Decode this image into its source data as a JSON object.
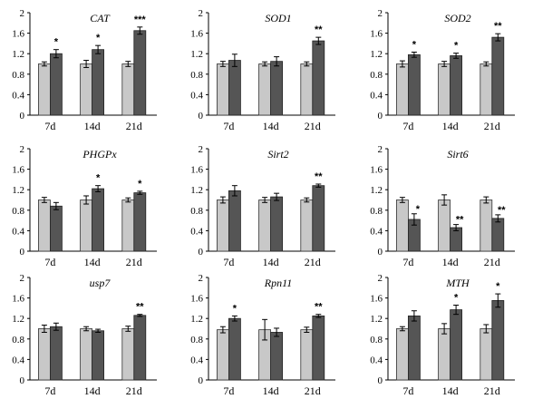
{
  "colors": {
    "control": "#c8c8c8",
    "treated": "#555555"
  },
  "chart_data": [
    {
      "type": "bar",
      "title": "CAT",
      "categories": [
        "7d",
        "14d",
        "21d"
      ],
      "ylim": [
        0,
        2
      ],
      "yticks": [
        "0",
        "0.4",
        "0.8",
        "1.2",
        "1.6",
        "2"
      ],
      "series": [
        {
          "values": [
            1.0,
            1.0,
            1.0
          ],
          "errors": [
            0.04,
            0.07,
            0.05
          ]
        },
        {
          "values": [
            1.2,
            1.28,
            1.65
          ],
          "errors": [
            0.08,
            0.08,
            0.07
          ]
        }
      ],
      "significance": [
        "*",
        "*",
        "***"
      ]
    },
    {
      "type": "bar",
      "title": "SOD1",
      "categories": [
        "7d",
        "14d",
        "21d"
      ],
      "ylim": [
        0,
        2
      ],
      "yticks": [
        "0",
        "0.4",
        "0.8",
        "1.2",
        "1.6",
        "2"
      ],
      "series": [
        {
          "values": [
            1.0,
            1.0,
            1.0
          ],
          "errors": [
            0.05,
            0.04,
            0.04
          ]
        },
        {
          "values": [
            1.07,
            1.05,
            1.45
          ],
          "errors": [
            0.12,
            0.09,
            0.07
          ]
        }
      ],
      "significance": [
        "",
        "",
        "**"
      ]
    },
    {
      "type": "bar",
      "title": "SOD2",
      "categories": [
        "7d",
        "14d",
        "21d"
      ],
      "ylim": [
        0,
        2
      ],
      "yticks": [
        "0",
        "0.4",
        "0.8",
        "1.2",
        "1.6",
        "2"
      ],
      "series": [
        {
          "values": [
            1.0,
            1.0,
            1.0
          ],
          "errors": [
            0.06,
            0.05,
            0.04
          ]
        },
        {
          "values": [
            1.18,
            1.16,
            1.52
          ],
          "errors": [
            0.05,
            0.05,
            0.07
          ]
        }
      ],
      "significance": [
        "*",
        "*",
        "**"
      ]
    },
    {
      "type": "bar",
      "title": "PHGPx",
      "categories": [
        "7d",
        "14d",
        "21d"
      ],
      "ylim": [
        0,
        2
      ],
      "yticks": [
        "0",
        "0.4",
        "0.8",
        "1.2",
        "1.6",
        "2"
      ],
      "series": [
        {
          "values": [
            1.0,
            1.0,
            1.0
          ],
          "errors": [
            0.05,
            0.08,
            0.04
          ]
        },
        {
          "values": [
            0.88,
            1.22,
            1.14
          ],
          "errors": [
            0.07,
            0.06,
            0.03
          ]
        }
      ],
      "significance": [
        "",
        "*",
        "*"
      ]
    },
    {
      "type": "bar",
      "title": "Sirt2",
      "categories": [
        "7d",
        "14d",
        "21d"
      ],
      "ylim": [
        0,
        2
      ],
      "yticks": [
        "0",
        "0.4",
        "0.8",
        "1.2",
        "1.6",
        "2"
      ],
      "series": [
        {
          "values": [
            1.0,
            1.0,
            1.0
          ],
          "errors": [
            0.06,
            0.05,
            0.04
          ]
        },
        {
          "values": [
            1.18,
            1.06,
            1.28
          ],
          "errors": [
            0.1,
            0.07,
            0.03
          ]
        }
      ],
      "significance": [
        "",
        "",
        "**"
      ]
    },
    {
      "type": "bar",
      "title": "Sirt6",
      "categories": [
        "7d",
        "14d",
        "21d"
      ],
      "ylim": [
        0,
        2
      ],
      "yticks": [
        "0",
        "0.4",
        "0.8",
        "1.2",
        "1.6",
        "2"
      ],
      "series": [
        {
          "values": [
            1.0,
            1.0,
            1.0
          ],
          "errors": [
            0.05,
            0.1,
            0.06
          ]
        },
        {
          "values": [
            0.62,
            0.46,
            0.64
          ],
          "errors": [
            0.11,
            0.06,
            0.07
          ]
        }
      ],
      "significance": [
        "*",
        "**",
        "**"
      ]
    },
    {
      "type": "bar",
      "title": "usp7",
      "categories": [
        "7d",
        "14d",
        "21d"
      ],
      "ylim": [
        0,
        2
      ],
      "yticks": [
        "0",
        "0.4",
        "0.8",
        "1.2",
        "1.6",
        "2"
      ],
      "series": [
        {
          "values": [
            1.0,
            1.0,
            1.0
          ],
          "errors": [
            0.07,
            0.04,
            0.05
          ]
        },
        {
          "values": [
            1.04,
            0.96,
            1.26
          ],
          "errors": [
            0.07,
            0.03,
            0.02
          ]
        }
      ],
      "significance": [
        "",
        "",
        "**"
      ]
    },
    {
      "type": "bar",
      "title": "Rpn11",
      "categories": [
        "7d",
        "14d",
        "21d"
      ],
      "ylim": [
        0,
        2
      ],
      "yticks": [
        "0",
        "0.4",
        "0.8",
        "1.2",
        "1.6",
        "2"
      ],
      "series": [
        {
          "values": [
            0.98,
            0.98,
            0.98
          ],
          "errors": [
            0.06,
            0.2,
            0.05
          ]
        },
        {
          "values": [
            1.2,
            0.93,
            1.25
          ],
          "errors": [
            0.05,
            0.08,
            0.03
          ]
        }
      ],
      "significance": [
        "*",
        "",
        "**"
      ]
    },
    {
      "type": "bar",
      "title": "MTH",
      "categories": [
        "7d",
        "14d",
        "21d"
      ],
      "ylim": [
        0,
        2
      ],
      "yticks": [
        "0",
        "0.4",
        "0.8",
        "1.2",
        "1.6",
        "2"
      ],
      "series": [
        {
          "values": [
            1.0,
            1.0,
            1.0
          ],
          "errors": [
            0.04,
            0.1,
            0.08
          ]
        },
        {
          "values": [
            1.25,
            1.37,
            1.55
          ],
          "errors": [
            0.1,
            0.09,
            0.13
          ]
        }
      ],
      "significance": [
        "",
        "*",
        "*"
      ]
    }
  ]
}
